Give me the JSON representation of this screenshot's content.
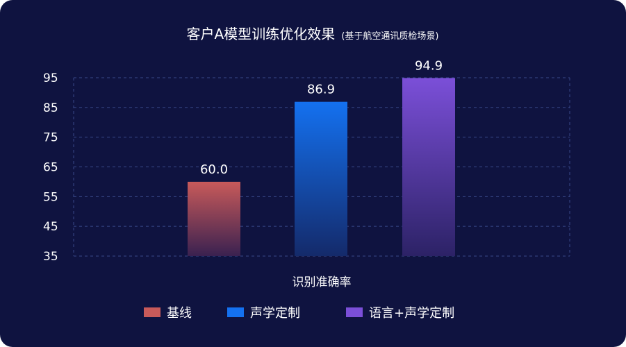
{
  "chart_data": {
    "type": "bar",
    "title": "客户A模型训练优化效果",
    "subtitle": "(基于航空通讯质检场景)",
    "xlabel": "识别准确率",
    "ylabel": "",
    "ylim": [
      35,
      95
    ],
    "yticks": [
      35,
      45,
      55,
      65,
      75,
      85,
      95
    ],
    "grid": true,
    "legend_position": "bottom",
    "series": [
      {
        "name": "基线",
        "value": 60.0,
        "label": "60.0",
        "color_top": "#c85a5a",
        "color_bottom": "#3a2150"
      },
      {
        "name": "声学定制",
        "value": 86.9,
        "label": "86.9",
        "color_top": "#1471f0",
        "color_bottom": "#142a6a"
      },
      {
        "name": "语言+声学定制",
        "value": 94.9,
        "label": "94.9",
        "color_top": "#7b4fd8",
        "color_bottom": "#2c2266"
      }
    ]
  },
  "colors": {
    "background": "#0f1340",
    "grid": "#3a4a8a",
    "text": "#ffffff"
  }
}
